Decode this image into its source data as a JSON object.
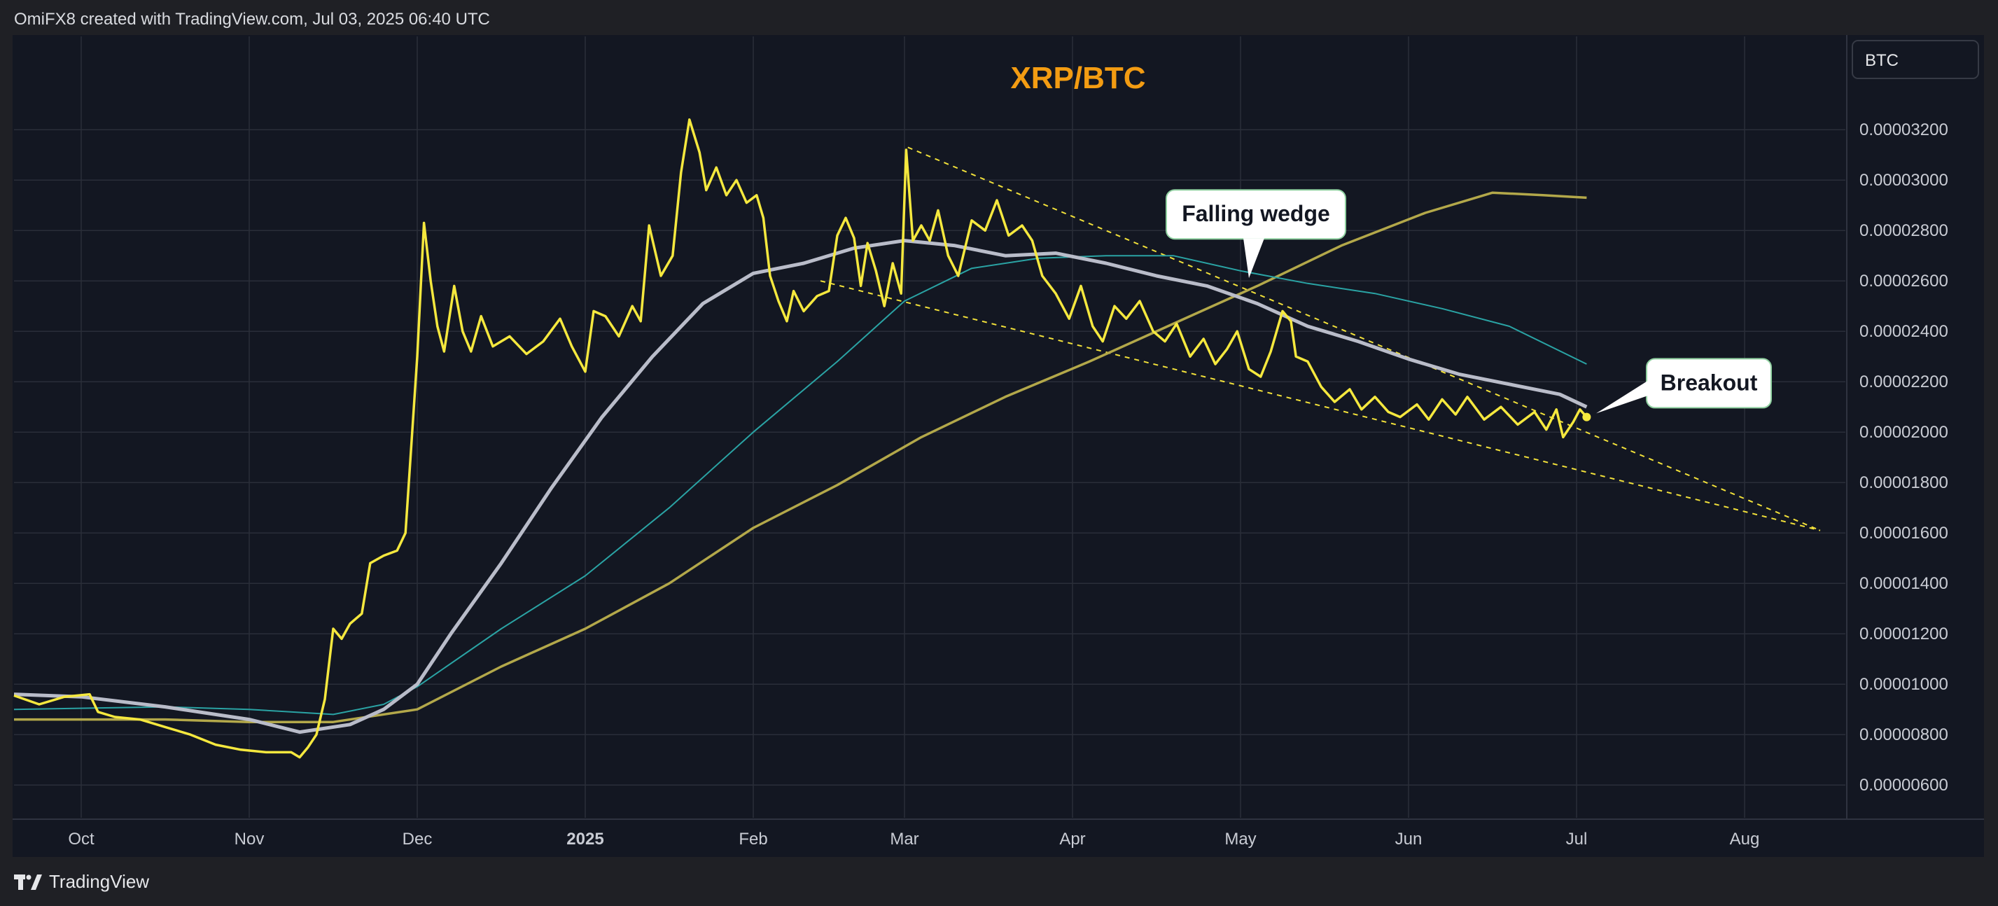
{
  "header": {
    "caption": "OmiFX8 created with TradingView.com, Jul 03, 2025 06:40 UTC"
  },
  "footer": {
    "brand": "TradingView"
  },
  "colors": {
    "background": "#1f2025",
    "plot_bg": "#131722",
    "grid": "#2a2e39",
    "price": "#f5e83e",
    "ma_white": "#b9bcc9",
    "ma_teal": "#2aa3a4",
    "ma_olive": "#b3a84a",
    "wedge": "#f2e13a",
    "title": "#f39c12"
  },
  "chart_data": {
    "type": "line",
    "title": "XRP/BTC",
    "price_scale_label": "BTC",
    "x_ticks": [
      {
        "t": 0.0,
        "label": "Oct"
      },
      {
        "t": 1.0,
        "label": "Nov"
      },
      {
        "t": 2.0,
        "label": "Dec"
      },
      {
        "t": 3.0,
        "label": "2025"
      },
      {
        "t": 4.0,
        "label": "Feb"
      },
      {
        "t": 4.9,
        "label": "Mar"
      },
      {
        "t": 5.9,
        "label": "Apr"
      },
      {
        "t": 6.9,
        "label": "May"
      },
      {
        "t": 7.9,
        "label": "Jun"
      },
      {
        "t": 8.9,
        "label": "Jul"
      },
      {
        "t": 9.9,
        "label": "Aug"
      }
    ],
    "y_ticks": [
      {
        "v": 3.2e-05,
        "label": "0.00003200"
      },
      {
        "v": 3e-05,
        "label": "0.00003000"
      },
      {
        "v": 2.8e-05,
        "label": "0.00002800"
      },
      {
        "v": 2.6e-05,
        "label": "0.00002600"
      },
      {
        "v": 2.4e-05,
        "label": "0.00002400"
      },
      {
        "v": 2.2e-05,
        "label": "0.00002200"
      },
      {
        "v": 2e-05,
        "label": "0.00002000"
      },
      {
        "v": 1.8e-05,
        "label": "0.00001800"
      },
      {
        "v": 1.6e-05,
        "label": "0.00001600"
      },
      {
        "v": 1.4e-05,
        "label": "0.00001400"
      },
      {
        "v": 1.2e-05,
        "label": "0.00001200"
      },
      {
        "v": 1e-05,
        "label": "0.00001000"
      },
      {
        "v": 8e-06,
        "label": "0.00000800"
      },
      {
        "v": 6e-06,
        "label": "0.00000600"
      }
    ],
    "xlim": [
      -0.4,
      10.5
    ],
    "ylim": [
      4.7e-06,
      3.57e-05
    ],
    "series": [
      {
        "key": "price",
        "points": [
          [
            -0.4,
            9.55e-06
          ],
          [
            -0.25,
            9.2e-06
          ],
          [
            -0.1,
            9.5e-06
          ],
          [
            0.05,
            9.6e-06
          ],
          [
            0.1,
            8.9e-06
          ],
          [
            0.2,
            8.7e-06
          ],
          [
            0.35,
            8.6e-06
          ],
          [
            0.5,
            8.3e-06
          ],
          [
            0.65,
            8e-06
          ],
          [
            0.8,
            7.6e-06
          ],
          [
            0.95,
            7.4e-06
          ],
          [
            1.1,
            7.3e-06
          ],
          [
            1.25,
            7.3e-06
          ],
          [
            1.3,
            7.1e-06
          ],
          [
            1.35,
            7.5e-06
          ],
          [
            1.4,
            8e-06
          ],
          [
            1.45,
            9.4e-06
          ],
          [
            1.5,
            1.22e-05
          ],
          [
            1.55,
            1.18e-05
          ],
          [
            1.6,
            1.24e-05
          ],
          [
            1.67,
            1.28e-05
          ],
          [
            1.72,
            1.48e-05
          ],
          [
            1.8,
            1.51e-05
          ],
          [
            1.88,
            1.53e-05
          ],
          [
            1.93,
            1.6e-05
          ],
          [
            1.97,
            2e-05
          ],
          [
            2.0,
            2.3e-05
          ],
          [
            2.04,
            2.83e-05
          ],
          [
            2.08,
            2.6e-05
          ],
          [
            2.12,
            2.42e-05
          ],
          [
            2.16,
            2.32e-05
          ],
          [
            2.22,
            2.58e-05
          ],
          [
            2.27,
            2.4e-05
          ],
          [
            2.32,
            2.32e-05
          ],
          [
            2.38,
            2.46e-05
          ],
          [
            2.45,
            2.34e-05
          ],
          [
            2.55,
            2.38e-05
          ],
          [
            2.65,
            2.31e-05
          ],
          [
            2.75,
            2.36e-05
          ],
          [
            2.85,
            2.45e-05
          ],
          [
            2.92,
            2.34e-05
          ],
          [
            3.0,
            2.24e-05
          ],
          [
            3.05,
            2.48e-05
          ],
          [
            3.12,
            2.46e-05
          ],
          [
            3.2,
            2.38e-05
          ],
          [
            3.28,
            2.5e-05
          ],
          [
            3.33,
            2.44e-05
          ],
          [
            3.38,
            2.82e-05
          ],
          [
            3.45,
            2.62e-05
          ],
          [
            3.52,
            2.7e-05
          ],
          [
            3.57,
            3.03e-05
          ],
          [
            3.62,
            3.24e-05
          ],
          [
            3.68,
            3.11e-05
          ],
          [
            3.72,
            2.96e-05
          ],
          [
            3.78,
            3.05e-05
          ],
          [
            3.84,
            2.94e-05
          ],
          [
            3.9,
            3e-05
          ],
          [
            3.96,
            2.91e-05
          ],
          [
            4.02,
            2.94e-05
          ],
          [
            4.06,
            2.85e-05
          ],
          [
            4.1,
            2.62e-05
          ],
          [
            4.15,
            2.52e-05
          ],
          [
            4.2,
            2.44e-05
          ],
          [
            4.24,
            2.56e-05
          ],
          [
            4.3,
            2.48e-05
          ],
          [
            4.38,
            2.54e-05
          ],
          [
            4.45,
            2.56e-05
          ],
          [
            4.5,
            2.78e-05
          ],
          [
            4.55,
            2.85e-05
          ],
          [
            4.6,
            2.77e-05
          ],
          [
            4.64,
            2.58e-05
          ],
          [
            4.68,
            2.75e-05
          ],
          [
            4.73,
            2.64e-05
          ],
          [
            4.78,
            2.5e-05
          ],
          [
            4.83,
            2.67e-05
          ],
          [
            4.88,
            2.55e-05
          ],
          [
            4.91,
            3.12e-05
          ],
          [
            4.95,
            2.76e-05
          ],
          [
            5.0,
            2.82e-05
          ],
          [
            5.05,
            2.76e-05
          ],
          [
            5.1,
            2.88e-05
          ],
          [
            5.16,
            2.7e-05
          ],
          [
            5.22,
            2.62e-05
          ],
          [
            5.3,
            2.84e-05
          ],
          [
            5.38,
            2.8e-05
          ],
          [
            5.45,
            2.92e-05
          ],
          [
            5.52,
            2.78e-05
          ],
          [
            5.6,
            2.82e-05
          ],
          [
            5.66,
            2.76e-05
          ],
          [
            5.72,
            2.62e-05
          ],
          [
            5.8,
            2.55e-05
          ],
          [
            5.88,
            2.45e-05
          ],
          [
            5.95,
            2.58e-05
          ],
          [
            6.02,
            2.42e-05
          ],
          [
            6.08,
            2.36e-05
          ],
          [
            6.15,
            2.5e-05
          ],
          [
            6.22,
            2.45e-05
          ],
          [
            6.3,
            2.52e-05
          ],
          [
            6.38,
            2.4e-05
          ],
          [
            6.45,
            2.36e-05
          ],
          [
            6.52,
            2.43e-05
          ],
          [
            6.6,
            2.3e-05
          ],
          [
            6.68,
            2.37e-05
          ],
          [
            6.75,
            2.27e-05
          ],
          [
            6.82,
            2.33e-05
          ],
          [
            6.88,
            2.4e-05
          ],
          [
            6.95,
            2.25e-05
          ],
          [
            7.02,
            2.22e-05
          ],
          [
            7.08,
            2.32e-05
          ],
          [
            7.15,
            2.48e-05
          ],
          [
            7.2,
            2.44e-05
          ],
          [
            7.23,
            2.3e-05
          ],
          [
            7.3,
            2.28e-05
          ],
          [
            7.38,
            2.18e-05
          ],
          [
            7.46,
            2.12e-05
          ],
          [
            7.55,
            2.17e-05
          ],
          [
            7.62,
            2.09e-05
          ],
          [
            7.7,
            2.14e-05
          ],
          [
            7.78,
            2.08e-05
          ],
          [
            7.85,
            2.06e-05
          ],
          [
            7.95,
            2.11e-05
          ],
          [
            8.02,
            2.05e-05
          ],
          [
            8.1,
            2.13e-05
          ],
          [
            8.18,
            2.07e-05
          ],
          [
            8.25,
            2.14e-05
          ],
          [
            8.35,
            2.05e-05
          ],
          [
            8.45,
            2.1e-05
          ],
          [
            8.55,
            2.03e-05
          ],
          [
            8.65,
            2.08e-05
          ],
          [
            8.72,
            2.01e-05
          ],
          [
            8.78,
            2.09e-05
          ],
          [
            8.82,
            1.98e-05
          ],
          [
            8.88,
            2.04e-05
          ],
          [
            8.92,
            2.09e-05
          ],
          [
            8.96,
            2.06e-05
          ]
        ]
      },
      {
        "key": "ma_white",
        "points": [
          [
            -0.4,
            9.6e-06
          ],
          [
            0.0,
            9.5e-06
          ],
          [
            0.5,
            9.1e-06
          ],
          [
            1.0,
            8.6e-06
          ],
          [
            1.3,
            8.1e-06
          ],
          [
            1.6,
            8.4e-06
          ],
          [
            1.8,
            9e-06
          ],
          [
            2.0,
            1e-05
          ],
          [
            2.2,
            1.2e-05
          ],
          [
            2.5,
            1.48e-05
          ],
          [
            2.8,
            1.78e-05
          ],
          [
            3.1,
            2.06e-05
          ],
          [
            3.4,
            2.3e-05
          ],
          [
            3.7,
            2.51e-05
          ],
          [
            4.0,
            2.63e-05
          ],
          [
            4.3,
            2.67e-05
          ],
          [
            4.6,
            2.73e-05
          ],
          [
            4.9,
            2.76e-05
          ],
          [
            5.2,
            2.74e-05
          ],
          [
            5.5,
            2.7e-05
          ],
          [
            5.8,
            2.71e-05
          ],
          [
            6.1,
            2.67e-05
          ],
          [
            6.4,
            2.62e-05
          ],
          [
            6.7,
            2.58e-05
          ],
          [
            7.0,
            2.51e-05
          ],
          [
            7.3,
            2.42e-05
          ],
          [
            7.6,
            2.36e-05
          ],
          [
            7.9,
            2.29e-05
          ],
          [
            8.2,
            2.23e-05
          ],
          [
            8.5,
            2.19e-05
          ],
          [
            8.8,
            2.15e-05
          ],
          [
            8.96,
            2.1e-05
          ]
        ]
      },
      {
        "key": "ma_teal",
        "points": [
          [
            -0.4,
            9e-06
          ],
          [
            0.5,
            9.1e-06
          ],
          [
            1.0,
            9e-06
          ],
          [
            1.5,
            8.8e-06
          ],
          [
            1.8,
            9.2e-06
          ],
          [
            2.0,
            9.9e-06
          ],
          [
            2.5,
            1.22e-05
          ],
          [
            3.0,
            1.43e-05
          ],
          [
            3.5,
            1.7e-05
          ],
          [
            4.0,
            2e-05
          ],
          [
            4.5,
            2.28e-05
          ],
          [
            4.9,
            2.52e-05
          ],
          [
            5.3,
            2.65e-05
          ],
          [
            5.7,
            2.69e-05
          ],
          [
            6.1,
            2.7e-05
          ],
          [
            6.5,
            2.7e-05
          ],
          [
            6.9,
            2.64e-05
          ],
          [
            7.3,
            2.59e-05
          ],
          [
            7.7,
            2.55e-05
          ],
          [
            8.1,
            2.49e-05
          ],
          [
            8.5,
            2.42e-05
          ],
          [
            8.96,
            2.27e-05
          ]
        ]
      },
      {
        "key": "ma_olive",
        "points": [
          [
            -0.4,
            8.6e-06
          ],
          [
            0.5,
            8.6e-06
          ],
          [
            1.0,
            8.5e-06
          ],
          [
            1.5,
            8.5e-06
          ],
          [
            2.0,
            9e-06
          ],
          [
            2.5,
            1.07e-05
          ],
          [
            3.0,
            1.22e-05
          ],
          [
            3.5,
            1.4e-05
          ],
          [
            4.0,
            1.62e-05
          ],
          [
            4.5,
            1.79e-05
          ],
          [
            5.0,
            1.98e-05
          ],
          [
            5.5,
            2.14e-05
          ],
          [
            6.0,
            2.28e-05
          ],
          [
            6.5,
            2.43e-05
          ],
          [
            7.0,
            2.58e-05
          ],
          [
            7.5,
            2.74e-05
          ],
          [
            8.0,
            2.87e-05
          ],
          [
            8.4,
            2.95e-05
          ],
          [
            8.7,
            2.94e-05
          ],
          [
            8.96,
            2.93e-05
          ]
        ]
      }
    ],
    "wedge_lines": [
      [
        [
          4.92,
          3.13e-05
        ],
        [
          10.35,
          1.61e-05
        ]
      ],
      [
        [
          4.4,
          2.6e-05
        ],
        [
          10.35,
          1.61e-05
        ]
      ]
    ],
    "annotations": [
      {
        "text": "Falling wedge",
        "anchor": [
          6.95,
          2.6e-05
        ]
      },
      {
        "text": "Breakout",
        "anchor": [
          9.0,
          2.08e-05
        ]
      }
    ]
  }
}
